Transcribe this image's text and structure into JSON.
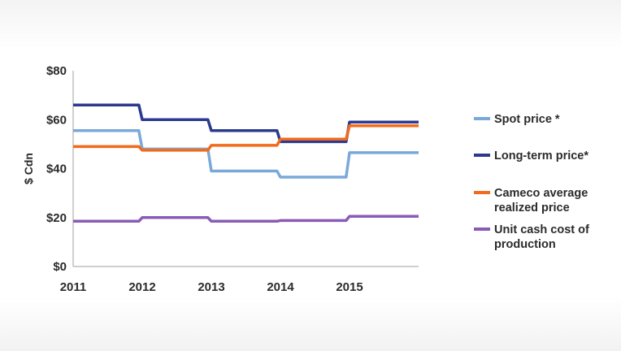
{
  "chart_data": {
    "type": "line",
    "title": "",
    "xlabel": "",
    "ylabel": "$ Cdn",
    "x_ticks": [
      "2011",
      "2012",
      "2013",
      "2014",
      "2015"
    ],
    "y_ticks": [
      "$0",
      "$20",
      "$40",
      "$60",
      "$80"
    ],
    "ylim": [
      0,
      80
    ],
    "xlim": [
      2011,
      2016
    ],
    "grid": false,
    "legend_position": "right",
    "x": [
      2011,
      2011.95,
      2012.0,
      2012.95,
      2013.0,
      2013.95,
      2014.0,
      2014.95,
      2015.0,
      2016.0
    ],
    "series": [
      {
        "name": "Spot price *",
        "color": "#7aa9d9",
        "values": [
          55.5,
          55.5,
          48,
          48,
          39,
          39,
          36.5,
          36.5,
          46.5,
          46.5
        ]
      },
      {
        "name": "Long-term price*",
        "color": "#2b3a8f",
        "values": [
          66,
          66,
          60,
          60,
          55.5,
          55.5,
          51,
          51,
          59,
          59
        ]
      },
      {
        "name": "Cameco average realized price",
        "color": "#f26a1b",
        "values": [
          49,
          49,
          47.5,
          47.5,
          49.5,
          49.5,
          52,
          52,
          57.5,
          57.5
        ]
      },
      {
        "name": "Unit cash cost of production",
        "color": "#8a5bb5",
        "values": [
          18.5,
          18.5,
          20,
          20,
          18.5,
          18.5,
          18.8,
          18.8,
          20.5,
          20.5
        ]
      }
    ]
  }
}
